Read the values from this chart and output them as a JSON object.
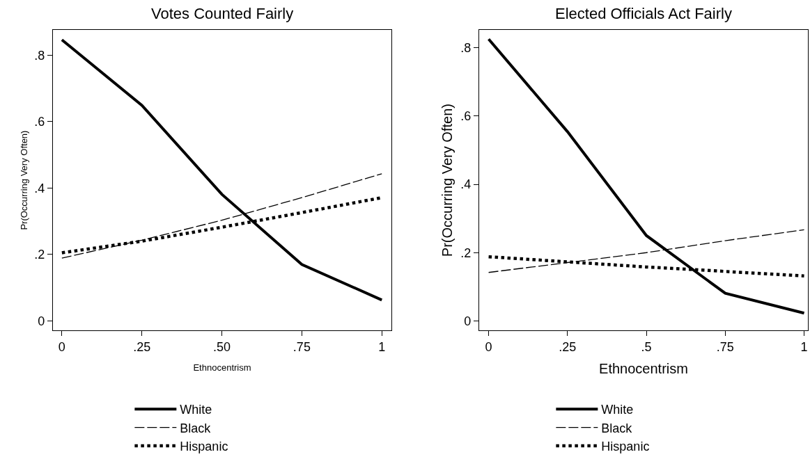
{
  "chart_data": [
    {
      "type": "line",
      "title": "Votes Counted Fairly",
      "xlabel": "Ethnocentrism",
      "ylabel": "Pr(Occurring Very Often)",
      "x": [
        0,
        0.25,
        0.5,
        0.75,
        1
      ],
      "series": [
        {
          "name": "White",
          "color": "#000000",
          "line_style": "solid",
          "values": [
            0.846,
            0.649,
            0.381,
            0.17,
            0.063
          ]
        },
        {
          "name": "Black",
          "color": "#000000",
          "line_style": "dashed",
          "values": [
            0.189,
            0.243,
            0.303,
            0.371,
            0.443
          ]
        },
        {
          "name": "Hispanic",
          "color": "#000000",
          "line_style": "dotted",
          "values": [
            0.205,
            0.24,
            0.282,
            0.326,
            0.371
          ]
        }
      ],
      "xlim": [
        -0.028,
        1.03
      ],
      "ylim": [
        -0.029,
        0.876
      ],
      "xticks": [
        0,
        {
          "value": 0.25,
          "label": ".25"
        },
        {
          "value": 0.5,
          "label": ".50"
        },
        {
          "value": 0.75,
          "label": ".75"
        },
        1
      ],
      "yticks": [
        0,
        {
          "value": 0.2,
          "label": ".2"
        },
        {
          "value": 0.4,
          "label": ".4"
        },
        {
          "value": 0.6,
          "label": ".6"
        },
        {
          "value": 0.8,
          "label": ".8"
        }
      ],
      "grid": false,
      "legend": "bottom",
      "marker": "none"
    },
    {
      "type": "line",
      "title": "Elected Officials Act Fairly",
      "xlabel": "Ethnocentrism",
      "ylabel": "Pr(Occurring Very Often)",
      "x": [
        0,
        0.25,
        0.5,
        0.75,
        1
      ],
      "series": [
        {
          "name": "White",
          "color": "#000000",
          "line_style": "solid",
          "values": [
            0.825,
            0.554,
            0.25,
            0.081,
            0.023
          ]
        },
        {
          "name": "Black",
          "color": "#000000",
          "line_style": "dashed",
          "values": [
            0.142,
            0.171,
            0.2,
            0.235,
            0.267
          ]
        },
        {
          "name": "Hispanic",
          "color": "#000000",
          "line_style": "dotted",
          "values": [
            0.188,
            0.173,
            0.158,
            0.145,
            0.132
          ]
        }
      ],
      "xlim": [
        -0.03,
        1.012
      ],
      "ylim": [
        -0.028,
        0.852
      ],
      "xticks": [
        0,
        {
          "value": 0.25,
          "label": ".25"
        },
        {
          "value": 0.5,
          "label": ".5"
        },
        {
          "value": 0.75,
          "label": ".75"
        },
        1
      ],
      "yticks": [
        0,
        {
          "value": 0.2,
          "label": ".2"
        },
        {
          "value": 0.4,
          "label": ".4"
        },
        {
          "value": 0.6,
          "label": ".6"
        },
        {
          "value": 0.8,
          "label": ".8"
        }
      ],
      "grid": false,
      "legend": "bottom",
      "marker": "none"
    }
  ]
}
